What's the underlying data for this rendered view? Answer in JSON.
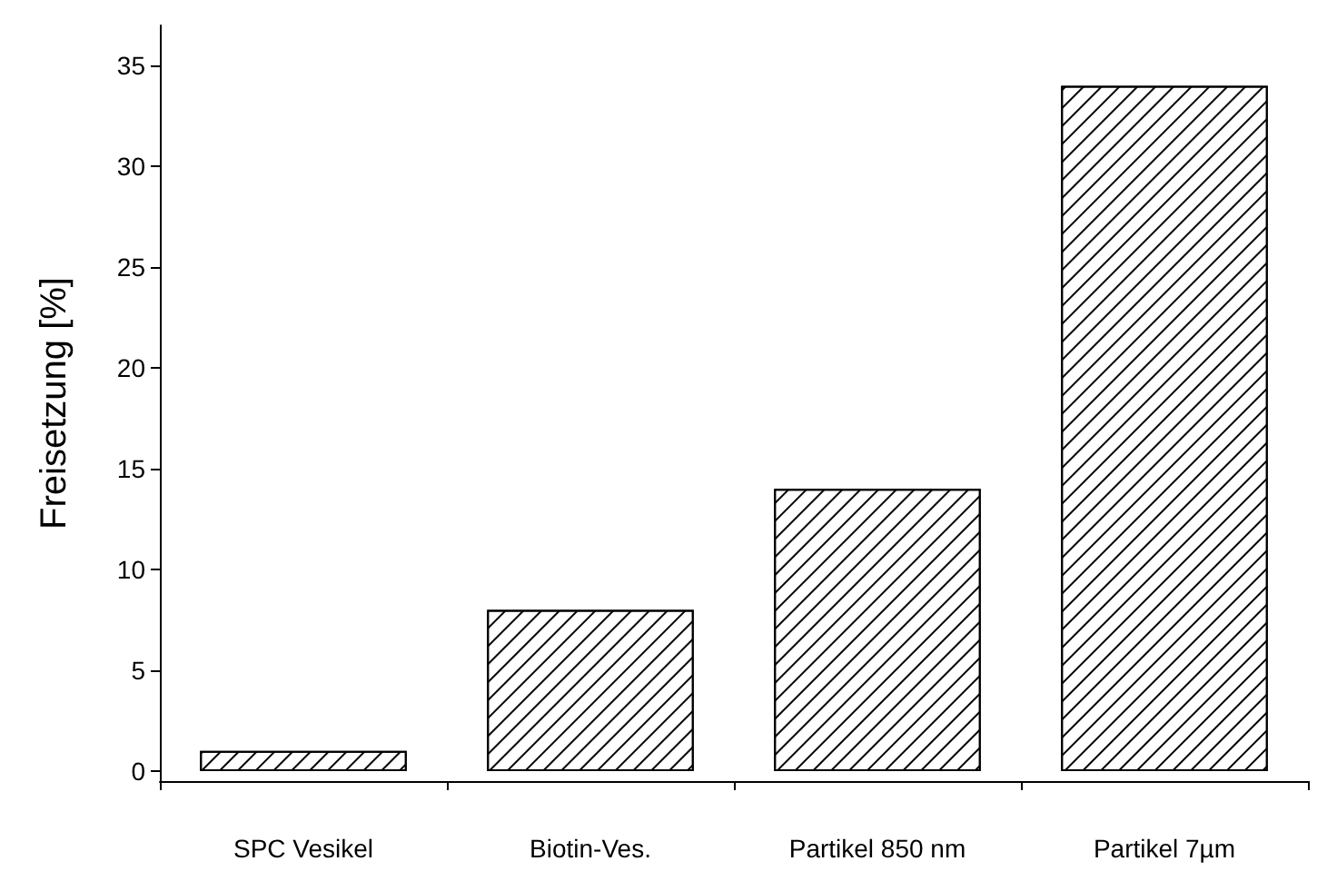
{
  "chart_data": {
    "type": "bar",
    "ylabel": "Freisetzung [%]",
    "categories": [
      "SPC Vesikel",
      "Biotin-Ves.",
      "Partikel 850 nm",
      "Partikel 7µm"
    ],
    "values": [
      1,
      8,
      14,
      34
    ],
    "color": "#ffffff",
    "ylim": [
      -0.5,
      37
    ],
    "yticks": [
      0,
      5,
      10,
      15,
      20,
      25,
      30,
      35
    ]
  }
}
